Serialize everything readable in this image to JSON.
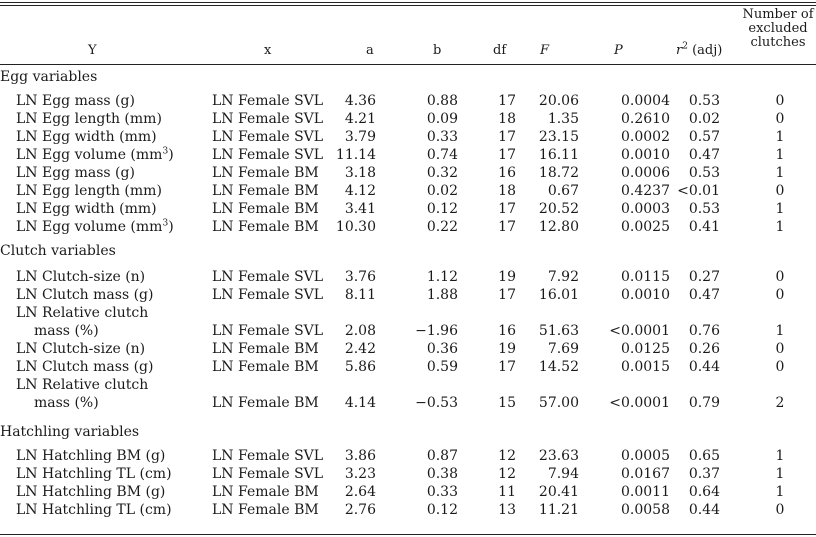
{
  "headers": {
    "y": "Y",
    "x": "x",
    "a": "a",
    "b": "b",
    "df": "df",
    "f": "F",
    "p": "P",
    "r2_base": "r",
    "r2_sup": "2",
    "r2_suffix": " (adj)",
    "excluded_line1": "Number of",
    "excluded_line2": "excluded",
    "excluded_line3": "clutches"
  },
  "sections": {
    "egg": "Egg variables",
    "clutch": "Clutch variables",
    "hatchling": "Hatchling variables"
  },
  "rows": [
    {
      "y": "LN Egg mass (g)",
      "x": "LN Female SVL",
      "a": "4.36",
      "b": "0.88",
      "df": "17",
      "f": "20.06",
      "p": "0.0004",
      "r2": "0.53",
      "n": "0"
    },
    {
      "y": "LN Egg length (mm)",
      "x": "LN Female SVL",
      "a": "4.21",
      "b": "0.09",
      "df": "18",
      "f": "1.35",
      "p": "0.2610",
      "r2": "0.02",
      "n": "0"
    },
    {
      "y": "LN Egg width (mm)",
      "x": "LN Female SVL",
      "a": "3.79",
      "b": "0.33",
      "df": "17",
      "f": "23.15",
      "p": "0.0002",
      "r2": "0.57",
      "n": "1"
    },
    {
      "y": "LN Egg volume (mm",
      "y_sup": "3",
      "y_end": ")",
      "x": "LN Female SVL",
      "a": "11.14",
      "b": "0.74",
      "df": "17",
      "f": "16.11",
      "p": "0.0010",
      "r2": "0.47",
      "n": "1"
    },
    {
      "y": "LN Egg mass (g)",
      "x": "LN Female BM",
      "a": "3.18",
      "b": "0.32",
      "df": "16",
      "f": "18.72",
      "p": "0.0006",
      "r2": "0.53",
      "n": "1"
    },
    {
      "y": "LN Egg length (mm)",
      "x": "LN Female BM",
      "a": "4.12",
      "b": "0.02",
      "df": "18",
      "f": "0.67",
      "p": "0.4237",
      "r2": "<0.01",
      "n": "0"
    },
    {
      "y": "LN Egg width (mm)",
      "x": "LN Female BM",
      "a": "3.41",
      "b": "0.12",
      "df": "17",
      "f": "20.52",
      "p": "0.0003",
      "r2": "0.53",
      "n": "1"
    },
    {
      "y": "LN Egg volume (mm",
      "y_sup": "3",
      "y_end": ")",
      "x": "LN Female BM",
      "a": "10.30",
      "b": "0.22",
      "df": "17",
      "f": "12.80",
      "p": "0.0025",
      "r2": "0.41",
      "n": "1"
    },
    {
      "y": "LN Clutch-size (n)",
      "x": "LN Female SVL",
      "a": "3.76",
      "b": "1.12",
      "df": "19",
      "f": "7.92",
      "p": "0.0115",
      "r2": "0.27",
      "n": "0"
    },
    {
      "y": "LN Clutch mass (g)",
      "x": "LN Female SVL",
      "a": "8.11",
      "b": "1.88",
      "df": "17",
      "f": "16.01",
      "p": "0.0010",
      "r2": "0.47",
      "n": "0"
    },
    {
      "y": "LN Relative clutch",
      "y_cont": "mass (%)",
      "x": "LN Female SVL",
      "a": "2.08",
      "b": "−1.96",
      "df": "16",
      "f": "51.63",
      "p": "<0.0001",
      "r2": "0.76",
      "n": "1"
    },
    {
      "y": "LN Clutch-size (n)",
      "x": "LN Female BM",
      "a": "2.42",
      "b": "0.36",
      "df": "19",
      "f": "7.69",
      "p": "0.0125",
      "r2": "0.26",
      "n": "0"
    },
    {
      "y": "LN Clutch mass (g)",
      "x": "LN Female BM",
      "a": "5.86",
      "b": "0.59",
      "df": "17",
      "f": "14.52",
      "p": "0.0015",
      "r2": "0.44",
      "n": "0"
    },
    {
      "y": "LN Relative clutch",
      "y_cont": "mass (%)",
      "x": "LN Female BM",
      "a": "4.14",
      "b": "−0.53",
      "df": "15",
      "f": "57.00",
      "p": "<0.0001",
      "r2": "0.79",
      "n": "2"
    },
    {
      "y": "LN Hatchling BM (g)",
      "x": "LN Female SVL",
      "a": "3.86",
      "b": "0.87",
      "df": "12",
      "f": "23.63",
      "p": "0.0005",
      "r2": "0.65",
      "n": "1"
    },
    {
      "y": "LN Hatchling TL (cm)",
      "x": "LN Female SVL",
      "a": "3.23",
      "b": "0.38",
      "df": "12",
      "f": "7.94",
      "p": "0.0167",
      "r2": "0.37",
      "n": "1"
    },
    {
      "y": "LN Hatchling BM (g)",
      "x": "LN Female BM",
      "a": "2.64",
      "b": "0.33",
      "df": "11",
      "f": "20.41",
      "p": "0.0011",
      "r2": "0.64",
      "n": "1"
    },
    {
      "y": "LN Hatchling TL (cm)",
      "x": "LN Female BM",
      "a": "2.76",
      "b": "0.12",
      "df": "13",
      "f": "11.21",
      "p": "0.0058",
      "r2": "0.44",
      "n": "0"
    }
  ]
}
